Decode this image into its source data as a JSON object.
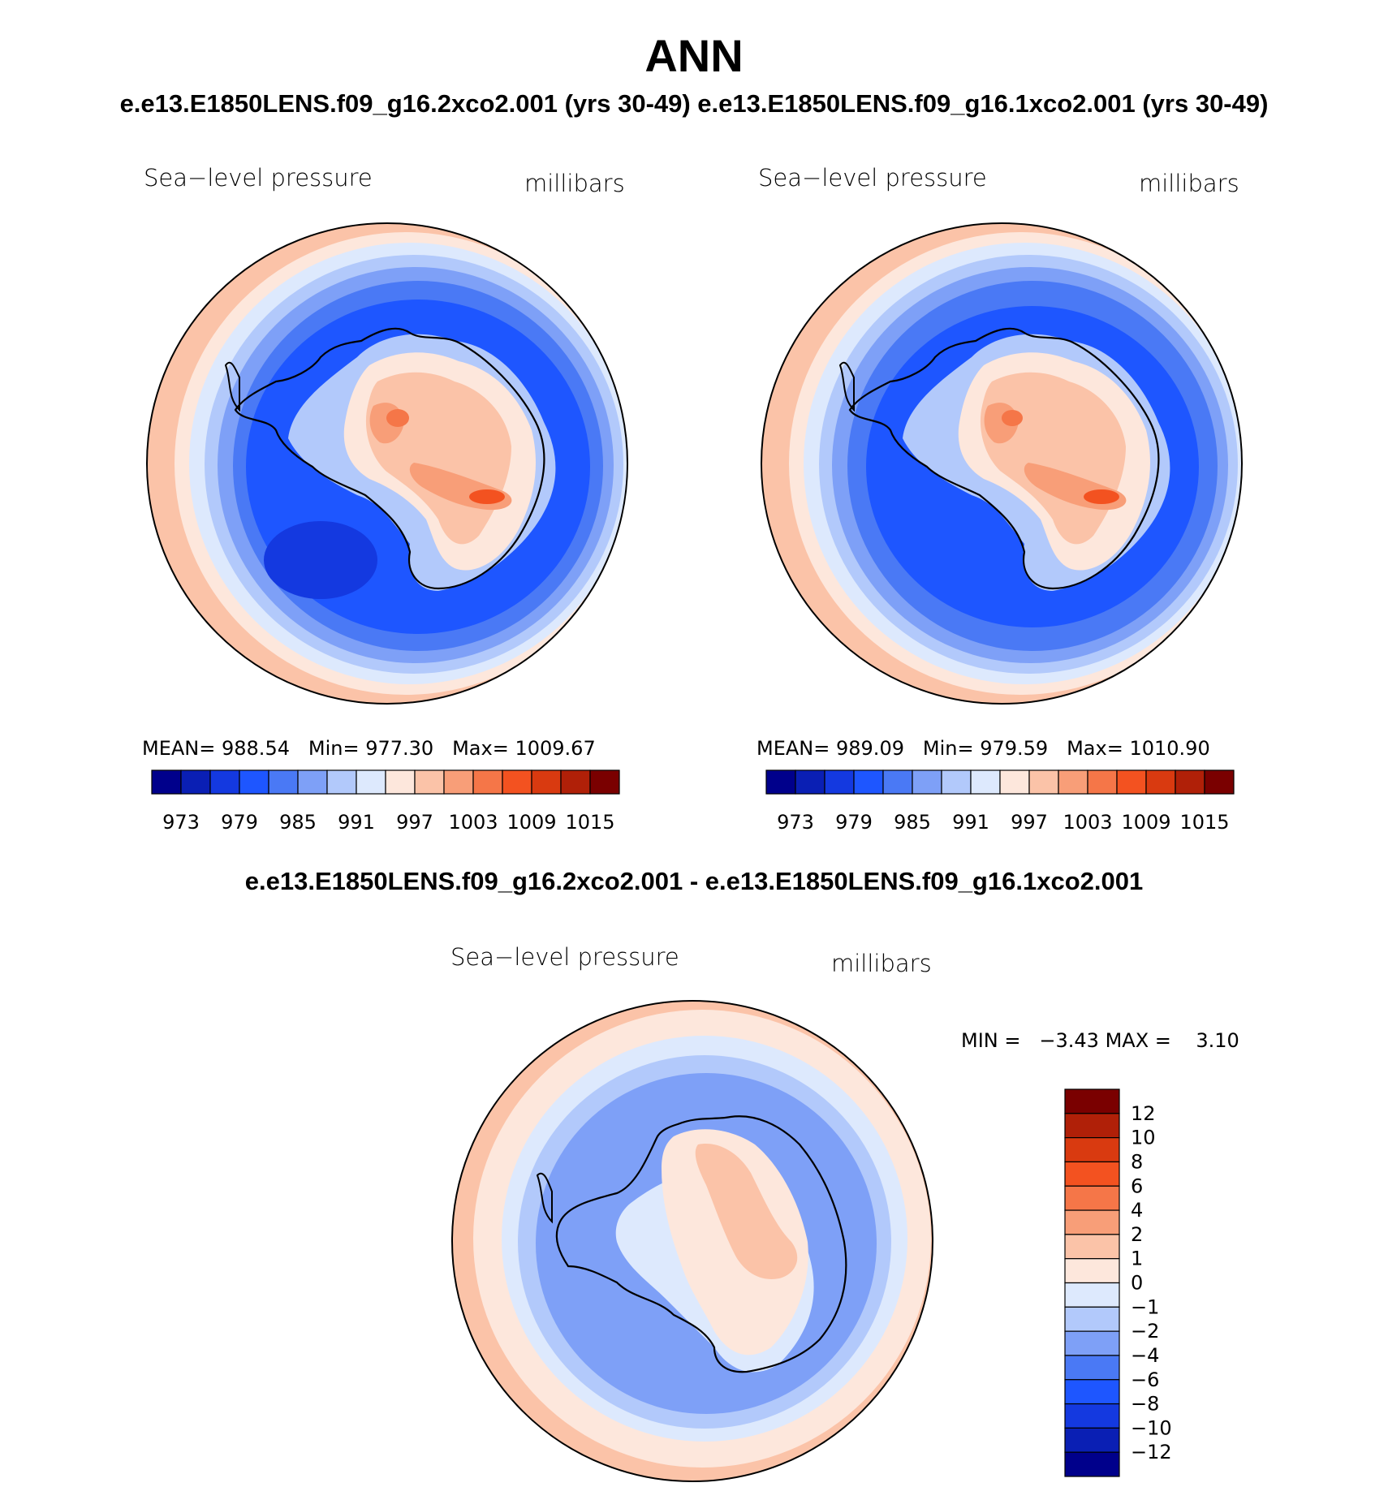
{
  "figure": {
    "title": "ANN",
    "subtitle": "e.e13.E1850LENS.f09_g16.2xco2.001 (yrs 30-49) e.e13.E1850LENS.f09_g16.1xco2.001 (yrs 30-49)",
    "diff_subtitle": "e.e13.E1850LENS.f09_g16.2xco2.001 - e.e13.E1850LENS.f09_g16.1xco2.001"
  },
  "palette": [
    "#00008b",
    "#0a1fb4",
    "#1439e0",
    "#1e56ff",
    "#4a79f5",
    "#7ea0f7",
    "#b2c9fb",
    "#dde9fd",
    "#fde7dc",
    "#fbc3a8",
    "#f89e78",
    "#f57648",
    "#f35220",
    "#d93a10",
    "#b02008",
    "#7a0000"
  ],
  "panels": [
    {
      "variable": "Sea−level pressure",
      "units": "millibars",
      "mean_label": "MEAN=",
      "mean": "988.54",
      "min_label": "Min=",
      "min": "977.30",
      "max_label": "Max=",
      "max": "1009.67",
      "colorbar_ticks": [
        "973",
        "979",
        "985",
        "991",
        "997",
        "1003",
        "1009",
        "1015"
      ]
    },
    {
      "variable": "Sea−level pressure",
      "units": "millibars",
      "mean_label": "MEAN=",
      "mean": "989.09",
      "min_label": "Min=",
      "min": "979.59",
      "max_label": "Max=",
      "max": "1010.90",
      "colorbar_ticks": [
        "973",
        "979",
        "985",
        "991",
        "997",
        "1003",
        "1009",
        "1015"
      ]
    }
  ],
  "difference": {
    "variable": "Sea−level pressure",
    "units": "millibars",
    "min_label": "MIN =",
    "min": "−3.43",
    "max_label": "MAX =",
    "max": "3.10",
    "colorbar_ticks": [
      "12",
      "10",
      "8",
      "6",
      "4",
      "2",
      "1",
      "0",
      "−1",
      "−2",
      "−4",
      "−6",
      "−8",
      "−10",
      "−12"
    ]
  }
}
